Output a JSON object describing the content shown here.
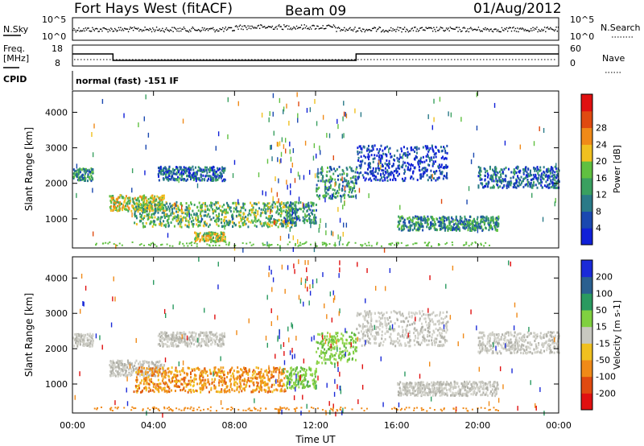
{
  "header": {
    "title": "Fort Hays West (fitACF)",
    "beam": "Beam 09",
    "date": "01/Aug/2012"
  },
  "top_panel": {
    "left_label": "N.Sky",
    "right_label": "N.Search",
    "left_ticks": [
      "10^5",
      "10^0"
    ],
    "right_ticks": [
      "10^5",
      "10^0"
    ]
  },
  "freq_panel": {
    "left_label_1": "Freq.",
    "left_label_2": "[MHz]",
    "right_label": "Nave",
    "left_ticks": [
      "18",
      "8"
    ],
    "right_ticks": [
      "60",
      "0"
    ],
    "freq_steps": [
      {
        "start_h": 0.0,
        "end_h": 2.0,
        "value_mhz": 15.5
      },
      {
        "start_h": 2.0,
        "end_h": 14.0,
        "value_mhz": 11.5
      },
      {
        "start_h": 14.0,
        "end_h": 24.0,
        "value_mhz": 15.5
      }
    ]
  },
  "cpid": {
    "label": "CPID",
    "text": "normal (fast) -151 IF"
  },
  "chart_data": [
    {
      "type": "heatmap",
      "title": "",
      "xlabel": "Time UT",
      "ylabel": "Slant Range [km]",
      "xlim_hours": [
        0,
        24
      ],
      "ylim_km": [
        180,
        4600
      ],
      "x_tick_labels": [
        "00:00",
        "04:00",
        "08:00",
        "12:00",
        "16:00",
        "20:00",
        "00:00"
      ],
      "y_tick_labels": [
        "1000",
        "2000",
        "3000",
        "4000"
      ],
      "colorbar": {
        "label": "Power [dB]",
        "ticks": [
          "4",
          "8",
          "12",
          "16",
          "20",
          "24",
          "28"
        ],
        "colors": [
          "#1020d8",
          "#1a48b0",
          "#2a7a88",
          "#3aa060",
          "#60c040",
          "#f0c020",
          "#f08a18",
          "#e04a10",
          "#e01010"
        ]
      },
      "echo_bands": [
        {
          "t_start": 0.0,
          "t_end": 1.0,
          "range_km": [
            2100,
            2450
          ],
          "level": 3
        },
        {
          "t_start": 1.8,
          "t_end": 4.5,
          "range_km": [
            1250,
            1700
          ],
          "level": 5
        },
        {
          "t_start": 4.2,
          "t_end": 7.5,
          "range_km": [
            2100,
            2500
          ],
          "level": 2
        },
        {
          "t_start": 3.0,
          "t_end": 11.0,
          "range_km": [
            800,
            1500
          ],
          "level": 4
        },
        {
          "t_start": 6.0,
          "t_end": 7.5,
          "range_km": [
            400,
            650
          ],
          "level": 5
        },
        {
          "t_start": 10.5,
          "t_end": 12.0,
          "range_km": [
            900,
            1500
          ],
          "level": 3
        },
        {
          "t_start": 12.0,
          "t_end": 14.0,
          "range_km": [
            1600,
            2500
          ],
          "level": 3
        },
        {
          "t_start": 14.0,
          "t_end": 18.5,
          "range_km": [
            2100,
            3100
          ],
          "level": 1
        },
        {
          "t_start": 16.0,
          "t_end": 21.0,
          "range_km": [
            700,
            1100
          ],
          "level": 3
        },
        {
          "t_start": 20.0,
          "t_end": 24.0,
          "range_km": [
            1900,
            2500
          ],
          "level": 2
        }
      ]
    },
    {
      "type": "heatmap",
      "title": "",
      "xlabel": "Time UT",
      "ylabel": "Slant Range [km]",
      "xlim_hours": [
        0,
        24
      ],
      "ylim_km": [
        180,
        4600
      ],
      "x_tick_labels": [
        "00:00",
        "04:00",
        "08:00",
        "12:00",
        "16:00",
        "20:00",
        "00:00"
      ],
      "y_tick_labels": [
        "1000",
        "2000",
        "3000",
        "4000"
      ],
      "colorbar": {
        "label": "Velocity [m s-1]",
        "ticks": [
          "200",
          "100",
          "50",
          "15",
          "-15",
          "-50",
          "-100",
          "-200"
        ],
        "colors": [
          "#1a2ad8",
          "#2a6090",
          "#2a9a60",
          "#80d040",
          "#c8c8c0",
          "#f0c020",
          "#f08a18",
          "#e04a10",
          "#e01010"
        ]
      },
      "echo_bands": [
        {
          "t_start": 0.0,
          "t_end": 1.0,
          "range_km": [
            2100,
            2450
          ],
          "velocity": "grey"
        },
        {
          "t_start": 1.8,
          "t_end": 4.5,
          "range_km": [
            1250,
            1700
          ],
          "velocity": "grey"
        },
        {
          "t_start": 4.2,
          "t_end": 7.5,
          "range_km": [
            2100,
            2500
          ],
          "velocity": "grey"
        },
        {
          "t_start": 3.0,
          "t_end": 10.5,
          "range_km": [
            800,
            1500
          ],
          "velocity": "negative"
        },
        {
          "t_start": 10.5,
          "t_end": 12.0,
          "range_km": [
            900,
            1500
          ],
          "velocity": "positive"
        },
        {
          "t_start": 12.0,
          "t_end": 14.0,
          "range_km": [
            1600,
            2500
          ],
          "velocity": "positive"
        },
        {
          "t_start": 14.0,
          "t_end": 18.5,
          "range_km": [
            2100,
            3100
          ],
          "velocity": "grey"
        },
        {
          "t_start": 16.0,
          "t_end": 21.0,
          "range_km": [
            700,
            1100
          ],
          "velocity": "grey"
        },
        {
          "t_start": 20.0,
          "t_end": 24.0,
          "range_km": [
            1900,
            2500
          ],
          "velocity": "grey"
        }
      ]
    }
  ]
}
